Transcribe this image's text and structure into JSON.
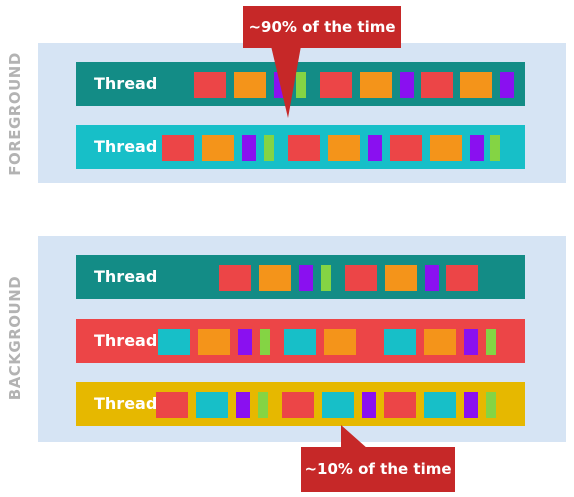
{
  "colors": {
    "panel_bg": "#d6e4f4",
    "teal": "#138c86",
    "cyan": "#17bfc8",
    "red": "#ec4547",
    "yellow": "#e6b800",
    "orange": "#f4941a",
    "purple": "#8a10f0",
    "green": "#84d444",
    "callout": "#c62828",
    "side_label": "#b3b3b3"
  },
  "groups": {
    "foreground": {
      "label": "FOREGROUND"
    },
    "background": {
      "label": "BACKGROUND"
    }
  },
  "threads": [
    {
      "label": "Thread",
      "color": "teal",
      "blocks": [
        "red",
        "orange",
        "purple",
        "green",
        "red",
        "orange",
        "purple",
        "red",
        "orange",
        "purple"
      ]
    },
    {
      "label": "Thread",
      "color": "cyan",
      "blocks": [
        "red",
        "orange",
        "purple",
        "green",
        "red",
        "orange",
        "purple",
        "red",
        "orange",
        "purple",
        "green"
      ]
    },
    {
      "label": "Thread",
      "color": "teal",
      "blocks": [
        "red",
        "orange",
        "purple",
        "green",
        "red",
        "orange",
        "purple",
        "red"
      ]
    },
    {
      "label": "Thread",
      "color": "red",
      "blocks": [
        "cyan",
        "orange",
        "purple",
        "green",
        "cyan",
        "orange",
        "cyan",
        "orange",
        "purple",
        "green"
      ]
    },
    {
      "label": "Thread",
      "color": "yellow",
      "blocks": [
        "red",
        "cyan",
        "purple",
        "green",
        "red",
        "cyan",
        "purple",
        "red",
        "cyan",
        "purple",
        "green"
      ]
    }
  ],
  "callouts": {
    "top": "~90% of the time",
    "bottom": "~10% of the time"
  }
}
